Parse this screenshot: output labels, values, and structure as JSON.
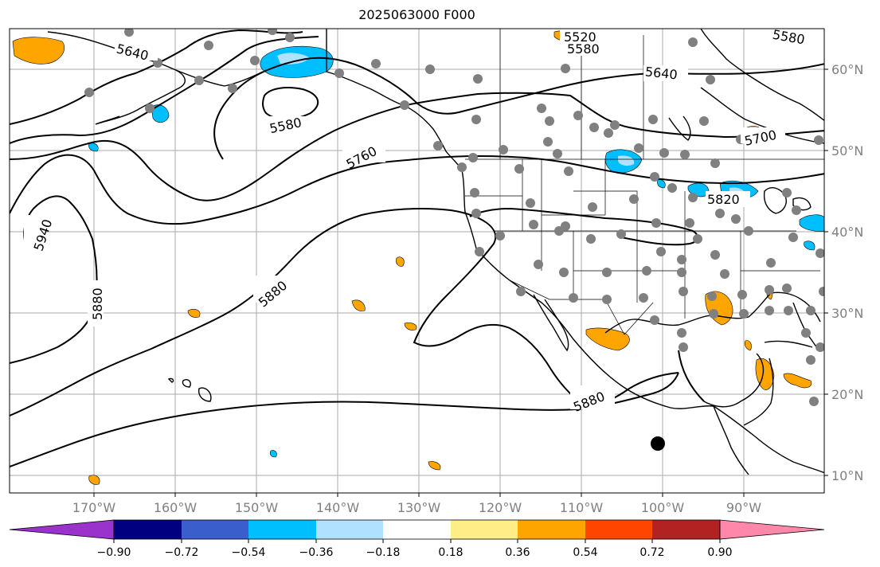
{
  "title": "2025063000 F000",
  "lon_labels": [
    "170°W",
    "160°W",
    "150°W",
    "140°W",
    "130°W",
    "120°W",
    "110°W",
    "100°W",
    "90°W"
  ],
  "lat_labels": [
    "60°N",
    "50°N",
    "40°N",
    "30°N",
    "20°N",
    "10°N"
  ],
  "contour_labels": [
    "5520",
    "5580",
    "5580",
    "5640",
    "5640",
    "5580",
    "5760",
    "5700",
    "5820",
    "5940",
    "5880",
    "5880",
    "5880"
  ],
  "colorbar": {
    "ticks": [
      "−0.90",
      "−0.72",
      "−0.54",
      "−0.36",
      "−0.18",
      "0.18",
      "0.36",
      "0.54",
      "0.72",
      "0.90"
    ],
    "colors": [
      "#9933cc",
      "#000080",
      "#3a5fcd",
      "#00bfff",
      "#b0e2ff",
      "#ffffff",
      "#ffee88",
      "#ffa500",
      "#ff4500",
      "#b22222",
      "#ff88aa"
    ]
  },
  "anomaly_colors": {
    "positive": "#ffa500",
    "positive_light": "#ffee88",
    "negative": "#00bfff",
    "negative_light": "#b0e2ff"
  },
  "station_color": "#808080",
  "marker_color": "#000000"
}
